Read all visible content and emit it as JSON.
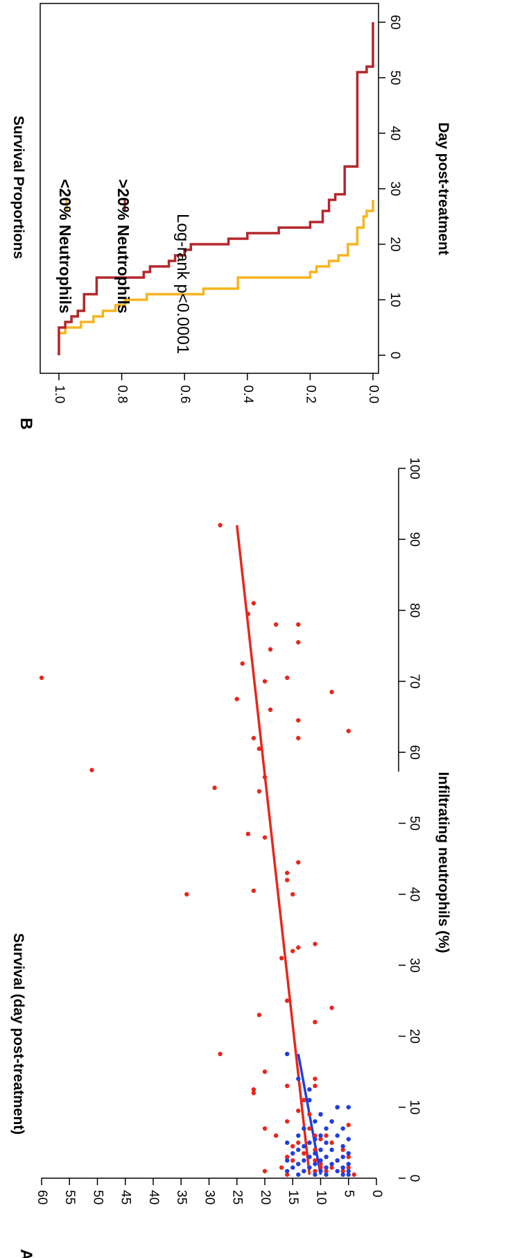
{
  "chart_data": [
    {
      "panel": "A",
      "type": "scatter",
      "xlabel": "Infiltrating neutrophils (%)",
      "ylabel": "Survival (day post-treatment)",
      "xlim": [
        0,
        100
      ],
      "ylim": [
        0,
        60
      ],
      "xticks": [
        "0",
        "10",
        "20",
        "30",
        "40",
        "50",
        "60",
        "70",
        "80",
        "90",
        "100"
      ],
      "yticks": [
        "0",
        "5",
        "10",
        "15",
        "20",
        "25",
        "30",
        "35",
        "40",
        "45",
        "50",
        "55",
        "60"
      ],
      "grid": false,
      "series": [
        {
          "color": "#e8261c",
          "points": [
            [
              0.5,
              4
            ],
            [
              0.5,
              16
            ],
            [
              1,
              20
            ],
            [
              1,
              13
            ],
            [
              1,
              11
            ],
            [
              1,
              9
            ],
            [
              1,
              6
            ],
            [
              1.5,
              17
            ],
            [
              1.5,
              12
            ],
            [
              1.5,
              10
            ],
            [
              1.5,
              8
            ],
            [
              1.5,
              5
            ],
            [
              2,
              14
            ],
            [
              2,
              10
            ],
            [
              2.5,
              15
            ],
            [
              2.5,
              11
            ],
            [
              2.5,
              7
            ],
            [
              3,
              16
            ],
            [
              3,
              12
            ],
            [
              3,
              9
            ],
            [
              3,
              5
            ],
            [
              3.5,
              13
            ],
            [
              4,
              11
            ],
            [
              4,
              10
            ],
            [
              4,
              6
            ],
            [
              4.5,
              15
            ],
            [
              5,
              14
            ],
            [
              5,
              12
            ],
            [
              5,
              8
            ],
            [
              5.5,
              10
            ],
            [
              6,
              18
            ],
            [
              6,
              11
            ],
            [
              6,
              9
            ],
            [
              7,
              20
            ],
            [
              7,
              13
            ],
            [
              7,
              12
            ],
            [
              7.5,
              5
            ],
            [
              8,
              16
            ],
            [
              8,
              8
            ],
            [
              9,
              12
            ],
            [
              9,
              10
            ],
            [
              9.5,
              14
            ],
            [
              10,
              7
            ],
            [
              11,
              13
            ],
            [
              11,
              12
            ],
            [
              12,
              22
            ],
            [
              12.5,
              22
            ],
            [
              13,
              11
            ],
            [
              13,
              16
            ],
            [
              14,
              11
            ],
            [
              15,
              20
            ],
            [
              17.5,
              28
            ],
            [
              22,
              11
            ],
            [
              23,
              21
            ],
            [
              24,
              8
            ],
            [
              25,
              16
            ],
            [
              31,
              17
            ],
            [
              32,
              15
            ],
            [
              32.5,
              14
            ],
            [
              33,
              11
            ],
            [
              40,
              34
            ],
            [
              40,
              15
            ],
            [
              40.5,
              22
            ],
            [
              42,
              16
            ],
            [
              43,
              16
            ],
            [
              44.5,
              14
            ],
            [
              48,
              20
            ],
            [
              48.5,
              23
            ],
            [
              54.5,
              21
            ],
            [
              55,
              29
            ],
            [
              56.5,
              20
            ],
            [
              57.5,
              51
            ],
            [
              60.5,
              21
            ],
            [
              62,
              14
            ],
            [
              62,
              22
            ],
            [
              63,
              5
            ],
            [
              64.5,
              14
            ],
            [
              66,
              19
            ],
            [
              67.5,
              25
            ],
            [
              68.5,
              8
            ],
            [
              70,
              20
            ],
            [
              70.5,
              16
            ],
            [
              70.5,
              60
            ],
            [
              72.5,
              24
            ],
            [
              74.5,
              19
            ],
            [
              75.5,
              14
            ],
            [
              78,
              14
            ],
            [
              78,
              18
            ],
            [
              79.5,
              23
            ],
            [
              81,
              22
            ],
            [
              92,
              28
            ]
          ],
          "trend": [
            [
              0.5,
              12
            ],
            [
              92,
              25
            ]
          ]
        },
        {
          "color": "#1f3fe0",
          "points": [
            [
              0.5,
              14
            ],
            [
              0.5,
              11
            ],
            [
              0.5,
              9
            ],
            [
              0.5,
              6
            ],
            [
              0.5,
              5
            ],
            [
              1,
              16
            ],
            [
              1,
              13
            ],
            [
              1,
              10
            ],
            [
              1,
              7
            ],
            [
              1,
              5
            ],
            [
              1.5,
              15
            ],
            [
              1.5,
              12
            ],
            [
              1.5,
              9
            ],
            [
              1.5,
              6
            ],
            [
              2,
              14
            ],
            [
              2,
              11
            ],
            [
              2,
              8
            ],
            [
              2,
              5
            ],
            [
              2.5,
              16
            ],
            [
              2.5,
              13
            ],
            [
              2.5,
              10
            ],
            [
              2.5,
              7
            ],
            [
              3,
              12
            ],
            [
              3,
              9
            ],
            [
              3,
              6
            ],
            [
              3.5,
              15
            ],
            [
              3.5,
              11
            ],
            [
              3.5,
              5
            ],
            [
              4,
              14
            ],
            [
              4,
              10
            ],
            [
              4,
              8
            ],
            [
              4.5,
              13
            ],
            [
              4.5,
              6
            ],
            [
              5,
              16
            ],
            [
              5,
              12
            ],
            [
              5,
              9
            ],
            [
              5.5,
              11
            ],
            [
              5.5,
              5
            ],
            [
              6,
              14
            ],
            [
              6,
              10
            ],
            [
              6,
              7
            ],
            [
              7,
              13
            ],
            [
              7,
              9
            ],
            [
              7,
              6
            ],
            [
              8,
              11
            ],
            [
              8,
              8
            ],
            [
              9,
              10
            ],
            [
              10,
              7
            ],
            [
              10,
              5
            ],
            [
              11,
              12
            ],
            [
              12.5,
              12
            ],
            [
              14,
              14
            ],
            [
              17.5,
              16
            ]
          ],
          "trend": [
            [
              0.5,
              10
            ],
            [
              17.5,
              14
            ]
          ]
        }
      ]
    },
    {
      "panel": "B",
      "type": "line",
      "xlabel": "Day post-treatment",
      "ylabel": "Survival Proportions",
      "xlim": [
        0,
        60
      ],
      "ylim": [
        0,
        1
      ],
      "xticks": [
        "0",
        "10",
        "20",
        "30",
        "40",
        "50",
        "60"
      ],
      "yticks": [
        "0.0",
        "0.2",
        "0.4",
        "0.6",
        "0.8",
        "1.0"
      ],
      "grid": false,
      "legend_position": "top-right",
      "annotation": "Log-rank p<0.0001",
      "series": [
        {
          "name": "<20% Neutrophils",
          "color": "#f5b41f",
          "x": [
            0,
            4,
            4,
            5,
            5,
            6,
            6,
            7,
            7,
            8,
            8,
            9,
            9,
            10,
            10,
            11,
            11,
            12,
            12,
            14,
            14,
            15,
            15,
            16,
            16,
            17,
            17,
            18,
            18,
            20,
            20,
            23,
            23,
            25,
            25,
            26,
            26,
            28
          ],
          "y": [
            1.0,
            1.0,
            0.98,
            0.98,
            0.93,
            0.93,
            0.89,
            0.89,
            0.86,
            0.86,
            0.82,
            0.82,
            0.79,
            0.79,
            0.72,
            0.72,
            0.54,
            0.54,
            0.43,
            0.43,
            0.2,
            0.2,
            0.18,
            0.18,
            0.14,
            0.14,
            0.11,
            0.11,
            0.08,
            0.08,
            0.05,
            0.05,
            0.03,
            0.03,
            0.02,
            0.02,
            0.0,
            0.0
          ]
        },
        {
          "name": ">20% Neutrophils",
          "color": "#b3262b",
          "x": [
            0,
            5,
            5,
            6,
            6,
            7,
            7,
            8,
            8,
            11,
            11,
            14,
            14,
            15,
            15,
            16,
            16,
            17,
            17,
            18,
            18,
            19,
            19,
            20,
            20,
            21,
            21,
            22,
            22,
            23,
            23,
            24,
            24,
            26,
            26,
            28,
            28,
            29,
            29,
            34,
            34,
            51,
            51,
            52,
            52,
            60
          ],
          "y": [
            1.0,
            1.0,
            0.98,
            0.98,
            0.96,
            0.96,
            0.94,
            0.94,
            0.92,
            0.92,
            0.88,
            0.88,
            0.73,
            0.73,
            0.71,
            0.71,
            0.65,
            0.65,
            0.63,
            0.63,
            0.6,
            0.6,
            0.58,
            0.58,
            0.46,
            0.46,
            0.4,
            0.4,
            0.3,
            0.3,
            0.2,
            0.2,
            0.16,
            0.16,
            0.14,
            0.14,
            0.12,
            0.12,
            0.09,
            0.09,
            0.05,
            0.05,
            0.02,
            0.02,
            0.0,
            0.0
          ]
        }
      ]
    }
  ]
}
